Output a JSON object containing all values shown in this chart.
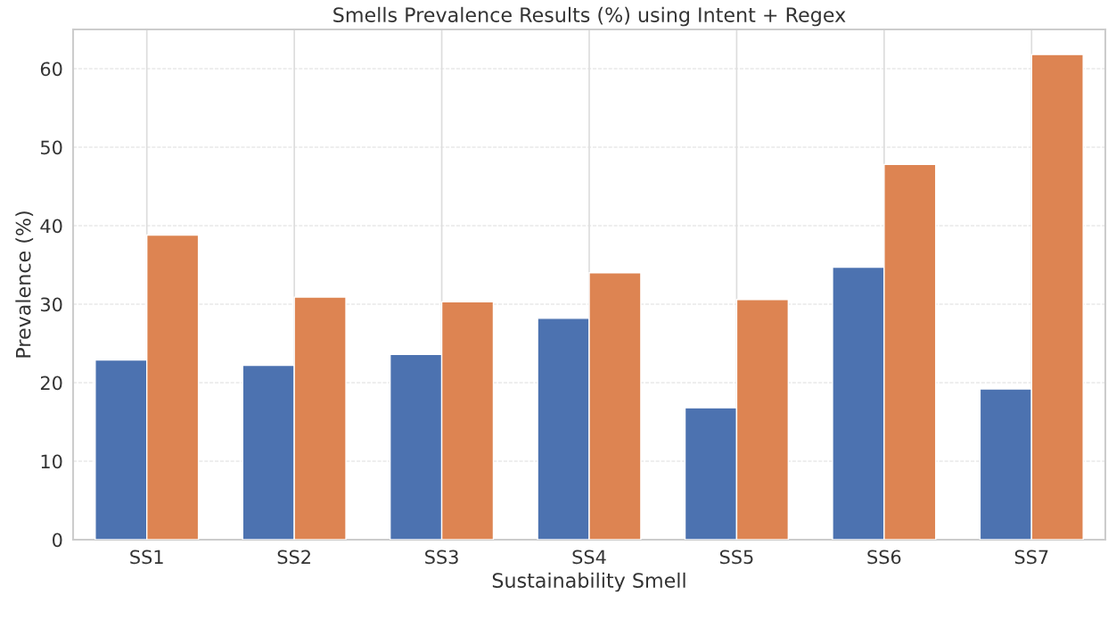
{
  "chart_data": {
    "type": "bar",
    "title": "Smells Prevalence Results (%) using Intent + Regex",
    "xlabel": "Sustainability Smell",
    "ylabel": "Prevalence (%)",
    "categories": [
      "SS1",
      "SS2",
      "SS3",
      "SS4",
      "SS5",
      "SS6",
      "SS7"
    ],
    "series": [
      {
        "color": "#4c72b0",
        "values": [
          22.9,
          22.2,
          23.6,
          28.2,
          16.8,
          34.7,
          19.2
        ]
      },
      {
        "color": "#dd8452",
        "values": [
          38.8,
          30.9,
          30.3,
          34.0,
          30.6,
          47.8,
          61.8
        ]
      }
    ],
    "ylim": [
      0,
      65
    ],
    "yticks": [
      0,
      10,
      20,
      30,
      40,
      50,
      60
    ],
    "grid": true
  }
}
